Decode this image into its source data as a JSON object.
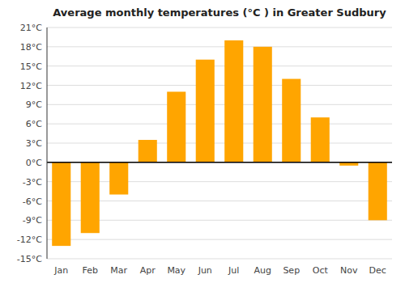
{
  "chart_data": {
    "type": "bar",
    "title": "Average monthly temperatures (°C ) in Greater Sudbury",
    "categories": [
      "Jan",
      "Feb",
      "Mar",
      "Apr",
      "May",
      "Jun",
      "Jul",
      "Aug",
      "Sep",
      "Oct",
      "Nov",
      "Dec"
    ],
    "values": [
      -13,
      -11,
      -5,
      3.5,
      11,
      16,
      19,
      18,
      13,
      7,
      -0.5,
      -9
    ],
    "color": "#FFA500",
    "ylim": [
      -15,
      21
    ],
    "yticks": [
      {
        "value": -15,
        "label": "-15°C"
      },
      {
        "value": -12,
        "label": "-12°C"
      },
      {
        "value": -9,
        "label": "-9°C"
      },
      {
        "value": -6,
        "label": "-6°C"
      },
      {
        "value": -3,
        "label": "-3°C"
      },
      {
        "value": 0,
        "label": "0°C"
      },
      {
        "value": 3,
        "label": "3°C"
      },
      {
        "value": 6,
        "label": "6°C"
      },
      {
        "value": 9,
        "label": "9°C"
      },
      {
        "value": 12,
        "label": "12°C"
      },
      {
        "value": 15,
        "label": "15°C"
      },
      {
        "value": 18,
        "label": "18°C"
      },
      {
        "value": 21,
        "label": "21°C"
      }
    ],
    "grid": true
  }
}
